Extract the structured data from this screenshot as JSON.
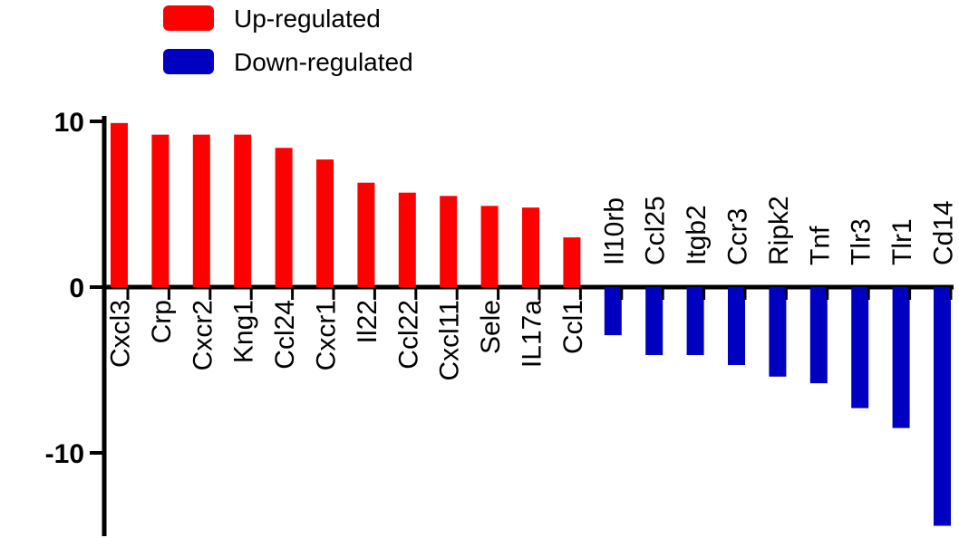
{
  "chart_data": {
    "type": "bar",
    "title": "",
    "xlabel": "",
    "ylabel": "",
    "ylim": [
      -15,
      10.5
    ],
    "yticks": [
      10,
      0,
      -10
    ],
    "yticklabels": [
      "10",
      "0",
      "-10"
    ],
    "legend_position": "top-left",
    "series": [
      {
        "name": "Up-regulated",
        "color": "#ff0000",
        "categories": [
          "Cxcl3",
          "Crp",
          "Cxcr2",
          "Kng1",
          "Ccl24",
          "Cxcr1",
          "Il22",
          "Ccl22",
          "Cxcl11",
          "Sele",
          "IL17a",
          "Ccl1"
        ],
        "values": [
          9.9,
          9.2,
          9.2,
          9.2,
          8.4,
          7.7,
          6.3,
          5.7,
          5.5,
          4.9,
          4.8,
          3.0
        ]
      },
      {
        "name": "Down-regulated",
        "color": "#0000c0",
        "categories": [
          "Il10rb",
          "Ccl25",
          "Itgb2",
          "Ccr3",
          "Ripk2",
          "Tnf",
          "Tlr3",
          "Tlr1",
          "Cd14"
        ],
        "values": [
          -2.9,
          -4.1,
          -4.1,
          -4.7,
          -5.4,
          -5.8,
          -7.3,
          -8.5,
          -14.4
        ]
      }
    ]
  }
}
